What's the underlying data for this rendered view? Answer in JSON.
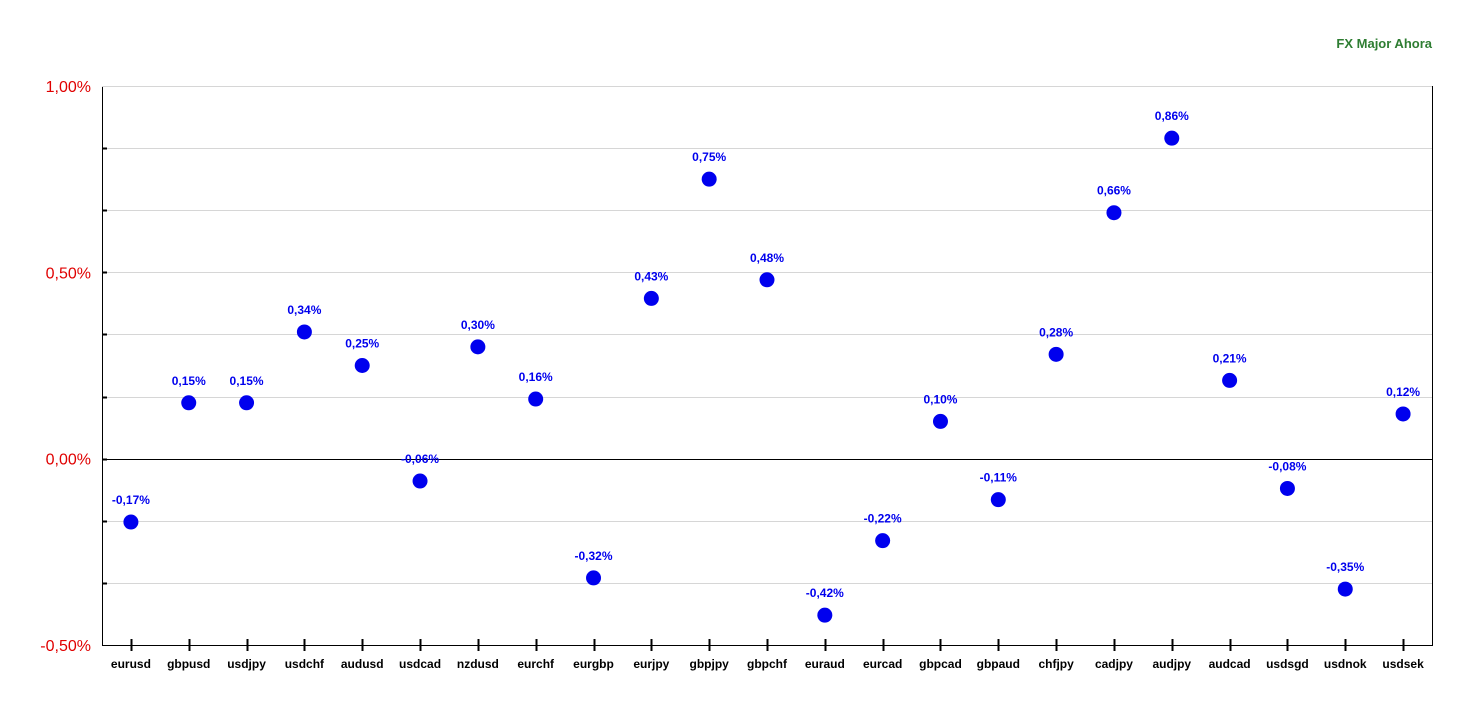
{
  "chart_data": {
    "type": "scatter",
    "legend": "FX Major Ahora",
    "legend_position": "top-right",
    "categories": [
      "eurusd",
      "gbpusd",
      "usdjpy",
      "usdchf",
      "audusd",
      "usdcad",
      "nzdusd",
      "eurchf",
      "eurgbp",
      "eurjpy",
      "gbpjpy",
      "gbpchf",
      "euraud",
      "eurcad",
      "gbpcad",
      "gbpaud",
      "chfjpy",
      "cadjpy",
      "audjpy",
      "audcad",
      "usdsgd",
      "usdnok",
      "usdsek"
    ],
    "values": [
      -0.17,
      0.15,
      0.15,
      0.34,
      0.25,
      -0.06,
      0.3,
      0.16,
      -0.32,
      0.43,
      0.75,
      0.48,
      -0.42,
      -0.22,
      0.1,
      -0.11,
      0.28,
      0.66,
      0.86,
      0.21,
      -0.08,
      -0.35,
      0.12
    ],
    "data_labels": [
      "-0,17%",
      "0,15%",
      "0,15%",
      "0,34%",
      "0,25%",
      "-0,06%",
      "0,30%",
      "0,16%",
      "-0,32%",
      "0,43%",
      "0,75%",
      "0,48%",
      "-0,42%",
      "-0,22%",
      "0,10%",
      "-0,11%",
      "0,28%",
      "0,66%",
      "0,86%",
      "0,21%",
      "-0,08%",
      "-0,35%",
      "0,12%"
    ],
    "ylim": [
      -0.5,
      1.0
    ],
    "yticks": [
      -0.5,
      0.0,
      0.5,
      1.0
    ],
    "ytick_labels": [
      "-0,50%",
      "0,00%",
      "0,50%",
      "1,00%"
    ],
    "minor_step": 0.16666,
    "grid": true,
    "xlabel": "",
    "ylabel": ""
  },
  "colors": {
    "marker": "#0000ee",
    "data_label": "#0000ee",
    "ytick_label": "#e00000",
    "legend": "#2e7d32",
    "grid": "#d6d6d6",
    "axis": "#000000"
  }
}
